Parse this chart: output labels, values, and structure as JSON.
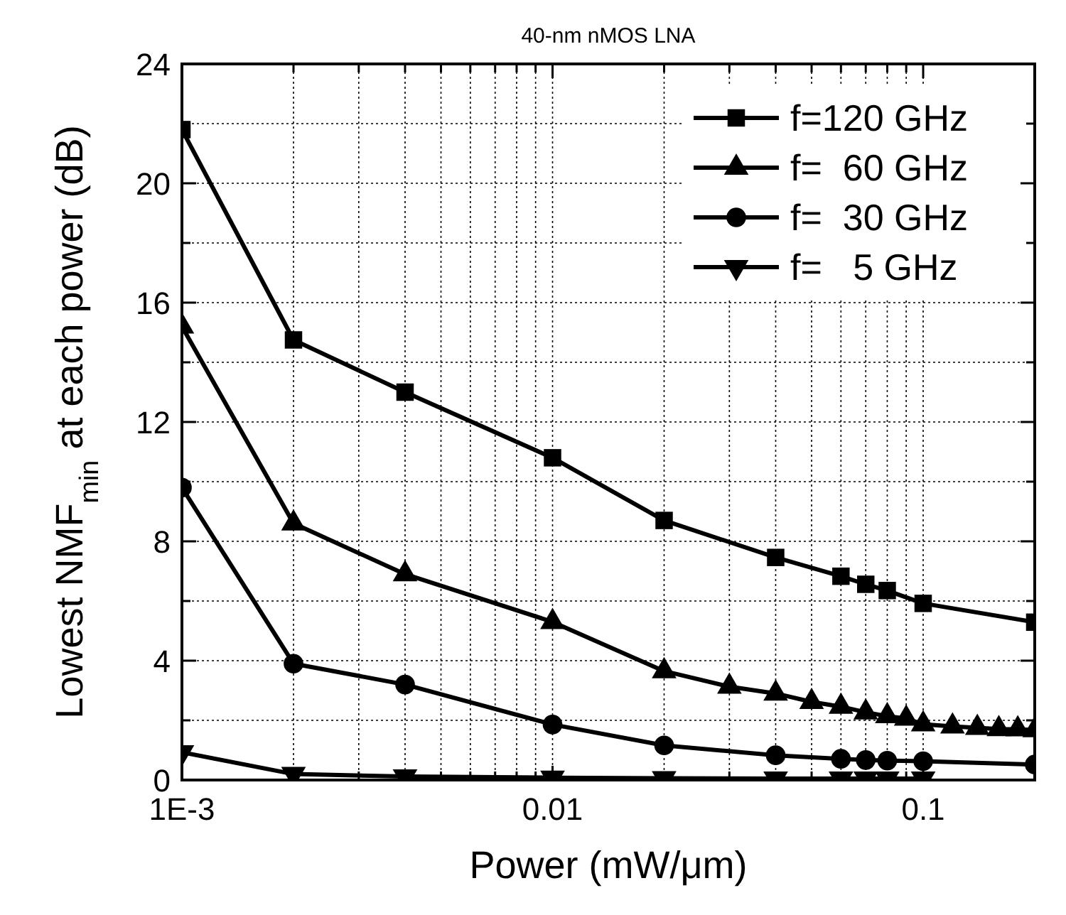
{
  "chart_data": {
    "type": "line",
    "title": "40-nm nMOS LNA",
    "xlabel": "Power (mW/μm)",
    "ylabel": "Lowest NMF$_{min}$ at each power (dB)",
    "log": "x",
    "grid": true,
    "legend": "top right",
    "line_style": "solid",
    "xlim": [
      0.001,
      0.2
    ],
    "ylim": [
      0,
      24
    ],
    "xticks": [
      {
        "value": 0.001,
        "label": "1E-3"
      },
      {
        "value": 0.002,
        "label": null
      },
      {
        "value": 0.003,
        "label": null
      },
      {
        "value": 0.004,
        "label": null
      },
      {
        "value": 0.005,
        "label": null
      },
      {
        "value": 0.006,
        "label": null
      },
      {
        "value": 0.007,
        "label": null
      },
      {
        "value": 0.008,
        "label": null
      },
      {
        "value": 0.009,
        "label": null
      },
      0.01,
      {
        "value": 0.02,
        "label": null
      },
      {
        "value": 0.03,
        "label": null
      },
      {
        "value": 0.04,
        "label": null
      },
      {
        "value": 0.05,
        "label": null
      },
      {
        "value": 0.06,
        "label": null
      },
      {
        "value": 0.07,
        "label": null
      },
      {
        "value": 0.08,
        "label": null
      },
      {
        "value": 0.09,
        "label": null
      },
      0.1,
      {
        "value": 0.2,
        "label": null
      }
    ],
    "yticks": [
      0,
      {
        "value": 2,
        "label": null
      },
      4,
      {
        "value": 6,
        "label": null
      },
      8,
      {
        "value": 10,
        "label": null
      },
      12,
      {
        "value": 14,
        "label": null
      },
      16,
      {
        "value": 18,
        "label": null
      },
      20,
      {
        "value": 22,
        "label": null
      },
      24
    ],
    "series": [
      {
        "name": "f=120 GHz",
        "color": "#000000",
        "marker": "square",
        "x": [
          0.001,
          0.002,
          0.004,
          0.01,
          0.02,
          0.04,
          0.06,
          0.07,
          0.08,
          0.1,
          0.2
        ],
        "values": [
          21.8,
          14.75,
          13.0,
          10.8,
          8.7,
          7.46,
          6.83,
          6.56,
          6.35,
          5.92,
          5.29
        ]
      },
      {
        "name": "f=  60 GHz",
        "color": "#000000",
        "marker": "triangle",
        "x": [
          0.001,
          0.002,
          0.004,
          0.01,
          0.02,
          0.03,
          0.04,
          0.05,
          0.06,
          0.07,
          0.08,
          0.09,
          0.1,
          0.12,
          0.14,
          0.16,
          0.18,
          0.2
        ],
        "values": [
          15.2,
          8.6,
          6.9,
          5.3,
          3.65,
          3.13,
          2.9,
          2.62,
          2.46,
          2.27,
          2.14,
          2.06,
          1.87,
          1.8,
          1.75,
          1.71,
          1.7,
          1.67
        ]
      },
      {
        "name": "f=  30 GHz",
        "color": "#000000",
        "marker": "circle",
        "x": [
          0.001,
          0.002,
          0.004,
          0.01,
          0.02,
          0.04,
          0.06,
          0.07,
          0.08,
          0.1,
          0.2
        ],
        "values": [
          9.8,
          3.9,
          3.2,
          1.86,
          1.16,
          0.83,
          0.71,
          0.67,
          0.65,
          0.63,
          0.52
        ]
      },
      {
        "name": "f=   5 GHz",
        "color": "#000000",
        "marker": "triangle-down",
        "x": [
          0.001,
          0.002,
          0.004,
          0.01,
          0.02,
          0.04,
          0.06,
          0.07,
          0.08,
          0.1
        ],
        "values": [
          0.93,
          0.2,
          0.12,
          0.08,
          0.06,
          0.05,
          0.05,
          0.05,
          0.05,
          0.05
        ]
      }
    ]
  }
}
